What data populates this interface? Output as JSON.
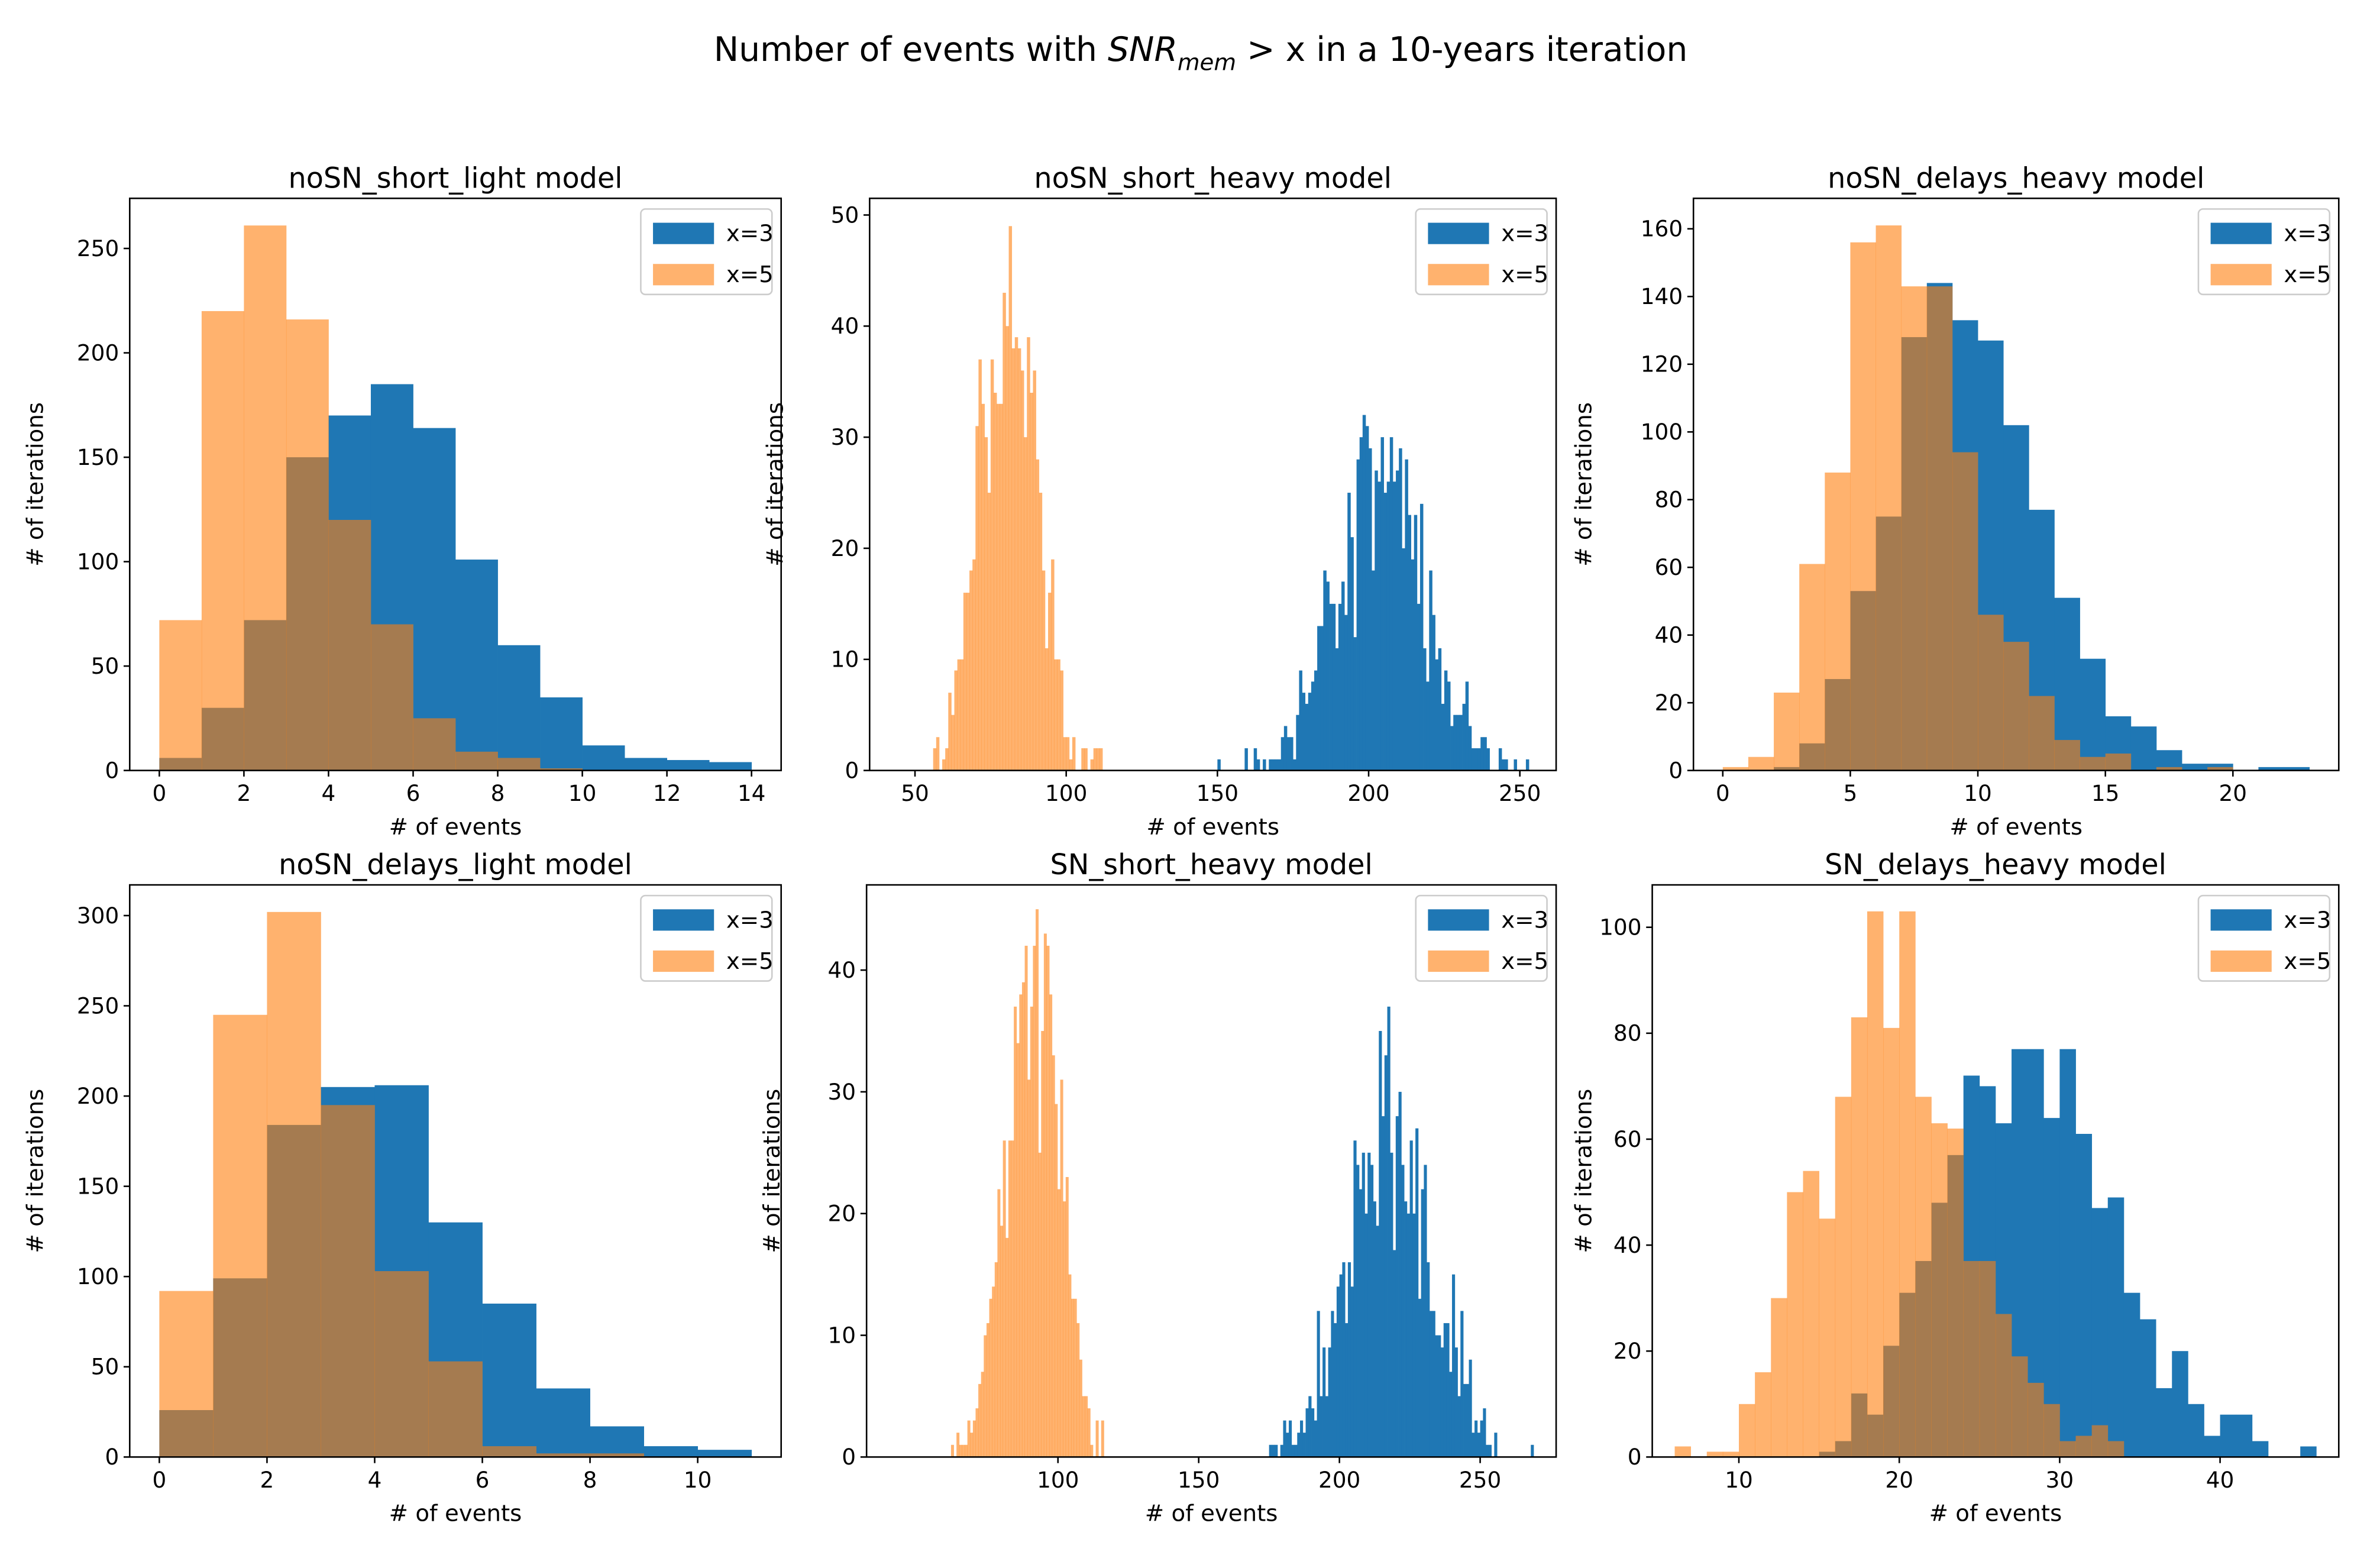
{
  "figure": {
    "title_prefix": "Number of events with ",
    "title_math": "SNR",
    "title_sub": "mem",
    "title_suffix": " > x in a 10-years iteration"
  },
  "colors": {
    "x3": "#1f77b4",
    "x5": "#ff7f0e",
    "x5_alpha": 0.6
  },
  "chart_data": [
    {
      "type": "bar",
      "title": "noSN_short_light model",
      "xlabel": "# of events",
      "ylabel": "# of iterations",
      "xlim": [
        -0.7,
        14.7
      ],
      "ylim": [
        0,
        274
      ],
      "xticks": [
        0,
        2,
        4,
        6,
        8,
        10,
        12,
        14
      ],
      "yticks": [
        0,
        50,
        100,
        150,
        200,
        250
      ],
      "legend": "top-right",
      "series": [
        {
          "name": "x=3",
          "bin_start": 0,
          "bin_width": 1,
          "counts": [
            6,
            30,
            72,
            150,
            170,
            185,
            164,
            101,
            60,
            35,
            12,
            6,
            5,
            4
          ]
        },
        {
          "name": "x=5",
          "bin_start": 0,
          "bin_width": 1,
          "counts": [
            72,
            220,
            261,
            216,
            120,
            70,
            25,
            9,
            6,
            1
          ]
        }
      ]
    },
    {
      "type": "bar",
      "title": "noSN_short_heavy model",
      "xlabel": "# of events",
      "ylabel": "# of iterations",
      "xlim": [
        35,
        262
      ],
      "ylim": [
        0,
        51.5
      ],
      "xticks": [
        50,
        100,
        150,
        200,
        250
      ],
      "yticks": [
        0,
        10,
        20,
        30,
        40,
        50
      ],
      "legend": "top-right",
      "series": [
        {
          "name": "x=3",
          "bin_start": 150,
          "bin_width": 1,
          "counts": [
            1,
            0,
            0,
            0,
            0,
            0,
            0,
            0,
            0,
            2,
            0,
            0,
            2,
            1,
            0,
            1,
            0,
            1,
            1,
            1,
            1,
            3,
            4,
            3,
            3,
            1,
            5,
            9,
            7,
            6,
            7,
            8,
            9,
            13,
            13,
            18,
            17,
            15,
            15,
            11,
            15,
            17,
            14,
            25,
            21,
            12,
            28,
            30,
            32,
            31,
            29,
            18,
            27,
            26,
            30,
            25,
            26,
            30,
            26,
            27,
            29,
            20,
            28,
            23,
            19,
            23,
            15,
            24,
            11,
            8,
            18,
            14,
            10,
            11,
            6,
            9,
            8,
            4,
            5,
            5,
            5,
            6,
            8,
            4,
            2,
            2,
            2,
            3,
            3,
            2,
            0,
            0,
            0,
            2,
            1,
            1,
            0,
            0,
            1,
            0,
            0,
            0,
            1
          ]
        },
        {
          "name": "x=5",
          "bin_start": 56,
          "bin_width": 1,
          "counts": [
            2,
            3,
            0,
            1,
            2,
            7,
            5,
            9,
            10,
            10,
            16,
            16,
            18,
            19,
            31,
            37,
            33,
            30,
            25,
            37,
            34,
            33,
            33,
            43,
            40,
            49,
            38,
            39,
            38,
            36,
            30,
            39,
            34,
            36,
            28,
            25,
            18,
            11,
            16,
            19,
            10,
            10,
            9,
            3,
            3,
            1,
            3,
            0,
            0,
            2,
            2,
            0,
            1,
            2,
            2,
            2
          ]
        }
      ]
    },
    {
      "type": "bar",
      "title": "noSN_delays_heavy model",
      "xlabel": "# of events",
      "ylabel": "# of iterations",
      "xlim": [
        -1.15,
        24.15
      ],
      "ylim": [
        0,
        169
      ],
      "xticks": [
        0,
        5,
        10,
        15,
        20
      ],
      "yticks": [
        0,
        20,
        40,
        60,
        80,
        100,
        120,
        140,
        160
      ],
      "legend": "top-right",
      "series": [
        {
          "name": "x=3",
          "bin_start": 0,
          "bin_width": 1,
          "counts": [
            0,
            0,
            1,
            8,
            27,
            53,
            75,
            128,
            144,
            133,
            127,
            102,
            77,
            51,
            33,
            16,
            13,
            6,
            2,
            2,
            0,
            1,
            1
          ]
        },
        {
          "name": "x=5",
          "bin_start": 0,
          "bin_width": 1,
          "counts": [
            1,
            4,
            23,
            61,
            88,
            156,
            161,
            143,
            143,
            94,
            46,
            38,
            22,
            9,
            4,
            5,
            0,
            1,
            0,
            1
          ]
        }
      ]
    },
    {
      "type": "bar",
      "title": "noSN_delays_light model",
      "xlabel": "# of events",
      "ylabel": "# of iterations",
      "xlim": [
        -0.55,
        11.55
      ],
      "ylim": [
        0,
        317
      ],
      "xticks": [
        0,
        2,
        4,
        6,
        8,
        10
      ],
      "yticks": [
        0,
        50,
        100,
        150,
        200,
        250,
        300
      ],
      "legend": "top-right",
      "series": [
        {
          "name": "x=3",
          "bin_start": 0,
          "bin_width": 1,
          "counts": [
            26,
            99,
            184,
            205,
            206,
            130,
            85,
            38,
            17,
            6,
            4
          ]
        },
        {
          "name": "x=5",
          "bin_start": 0,
          "bin_width": 1,
          "counts": [
            92,
            245,
            302,
            195,
            103,
            53,
            6,
            2,
            2
          ]
        }
      ]
    },
    {
      "type": "bar",
      "title": "SN_short_heavy model",
      "xlabel": "# of events",
      "ylabel": "# of iterations",
      "xlim": [
        32,
        277
      ],
      "ylim": [
        0,
        47
      ],
      "xticks": [
        100,
        150,
        200,
        250
      ],
      "yticks": [
        0,
        10,
        20,
        30,
        40
      ],
      "legend": "top-right",
      "series": [
        {
          "name": "x=3",
          "bin_start": 175,
          "bin_width": 1,
          "counts": [
            1,
            1,
            1,
            0,
            1,
            3,
            2,
            3,
            1,
            1,
            2,
            3,
            2,
            4,
            5,
            4,
            3,
            12,
            5,
            9,
            5,
            9,
            12,
            11,
            14,
            15,
            16,
            11,
            16,
            14,
            26,
            24,
            22,
            25,
            20,
            25,
            24,
            21,
            19,
            35,
            28,
            33,
            37,
            25,
            17,
            28,
            30,
            24,
            21,
            20,
            26,
            20,
            27,
            13,
            22,
            24,
            16,
            12,
            12,
            10,
            10,
            9,
            11,
            11,
            7,
            15,
            9,
            5,
            12,
            6,
            6,
            8,
            2,
            3,
            2,
            3,
            4,
            1,
            1,
            0,
            2,
            0,
            0,
            0,
            0,
            0,
            0,
            0,
            0,
            0,
            0,
            0,
            0,
            1
          ]
        },
        {
          "name": "x=5",
          "bin_start": 62,
          "bin_width": 0.97,
          "counts": [
            1,
            0,
            2,
            1,
            1,
            1,
            3,
            2,
            3,
            4,
            6,
            7,
            10,
            11,
            13,
            14,
            16,
            22,
            19,
            26,
            18,
            26,
            26,
            37,
            34,
            38,
            39,
            42,
            31,
            37,
            42,
            45,
            25,
            35,
            43,
            42,
            38,
            33,
            29,
            22,
            31,
            21,
            23,
            15,
            13,
            13,
            11,
            8,
            5,
            5,
            4,
            1,
            0,
            3,
            0,
            3
          ]
        }
      ]
    },
    {
      "type": "bar",
      "title": "SN_delays_heavy model",
      "xlabel": "# of events",
      "ylabel": "# of iterations",
      "xlim": [
        4.6,
        47.4
      ],
      "ylim": [
        0,
        108
      ],
      "xticks": [
        10,
        20,
        30,
        40
      ],
      "yticks": [
        0,
        20,
        40,
        60,
        80,
        100
      ],
      "legend": "top-right",
      "series": [
        {
          "name": "x=3",
          "bin_start": 15,
          "bin_width": 1,
          "counts": [
            1,
            3,
            12,
            8,
            21,
            31,
            37,
            48,
            57,
            72,
            70,
            63,
            77,
            77,
            64,
            77,
            61,
            47,
            49,
            31,
            26,
            13,
            20,
            10,
            4,
            8,
            8,
            3,
            0,
            0,
            2
          ]
        },
        {
          "name": "x=5",
          "bin_start": 6,
          "bin_width": 1,
          "counts": [
            2,
            0,
            1,
            1,
            10,
            16,
            30,
            50,
            54,
            45,
            68,
            83,
            103,
            81,
            103,
            68,
            63,
            62,
            37,
            37,
            27,
            19,
            14,
            10,
            3,
            4,
            6,
            3
          ]
        }
      ]
    }
  ]
}
